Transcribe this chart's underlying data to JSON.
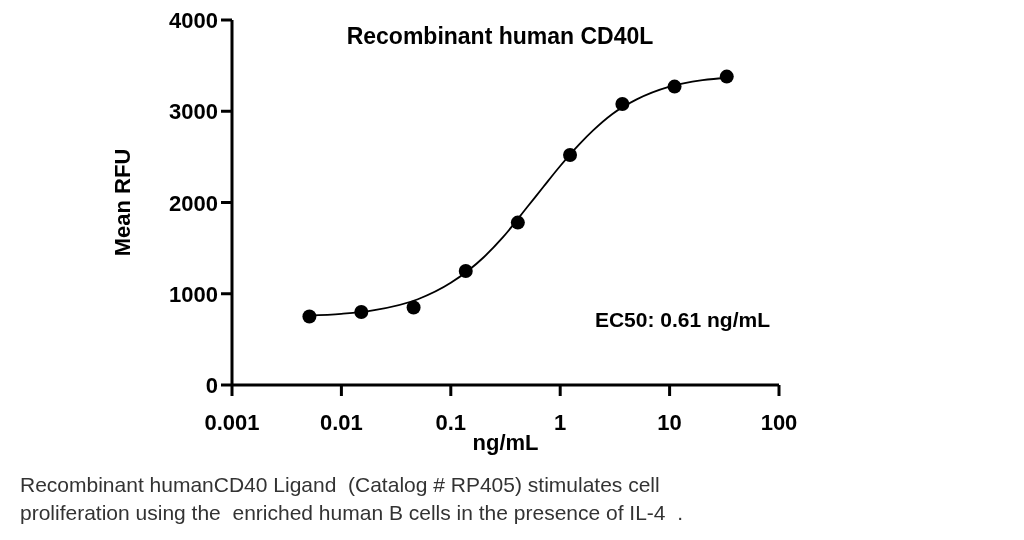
{
  "chart_data": {
    "type": "scatter",
    "title": "Recombinant human CD40L",
    "xlabel": "ng/mL",
    "ylabel": "Mean RFU",
    "log": "x",
    "xlim": [
      0.001,
      100
    ],
    "xticks": [
      0.001,
      0.01,
      0.1,
      1,
      10,
      100
    ],
    "ylim": [
      0,
      4000
    ],
    "yticks": [
      0,
      1000,
      2000,
      3000,
      4000
    ],
    "grid": false,
    "marker": "circle",
    "series": [
      {
        "color": "#000000",
        "x": [
          0.0051,
          0.0152,
          0.0457,
          0.137,
          0.41,
          1.23,
          3.7,
          11.1,
          33.3
        ],
        "values": [
          750,
          800,
          850,
          1250,
          1780,
          2520,
          3080,
          3270,
          3380
        ]
      },
      {
        "type": "line",
        "color": "#000000",
        "marker": "none",
        "x": [
          0.005,
          0.01,
          0.02,
          0.05,
          0.1,
          0.2,
          0.3,
          0.5,
          0.7,
          1,
          1.5,
          2,
          3,
          5,
          10,
          20,
          35
        ],
        "values": [
          760,
          780,
          820,
          940,
          1120,
          1400,
          1620,
          1950,
          2170,
          2400,
          2640,
          2790,
          2970,
          3130,
          3270,
          3340,
          3370
        ]
      }
    ],
    "annotations": [
      "EC50: 0.61 ng/mL",
      "Recombinant humanCD40 Ligand  (Catalog # RP405) stimulates cell proliferation using the  enriched human B cells in the presence of IL-4  ."
    ]
  }
}
